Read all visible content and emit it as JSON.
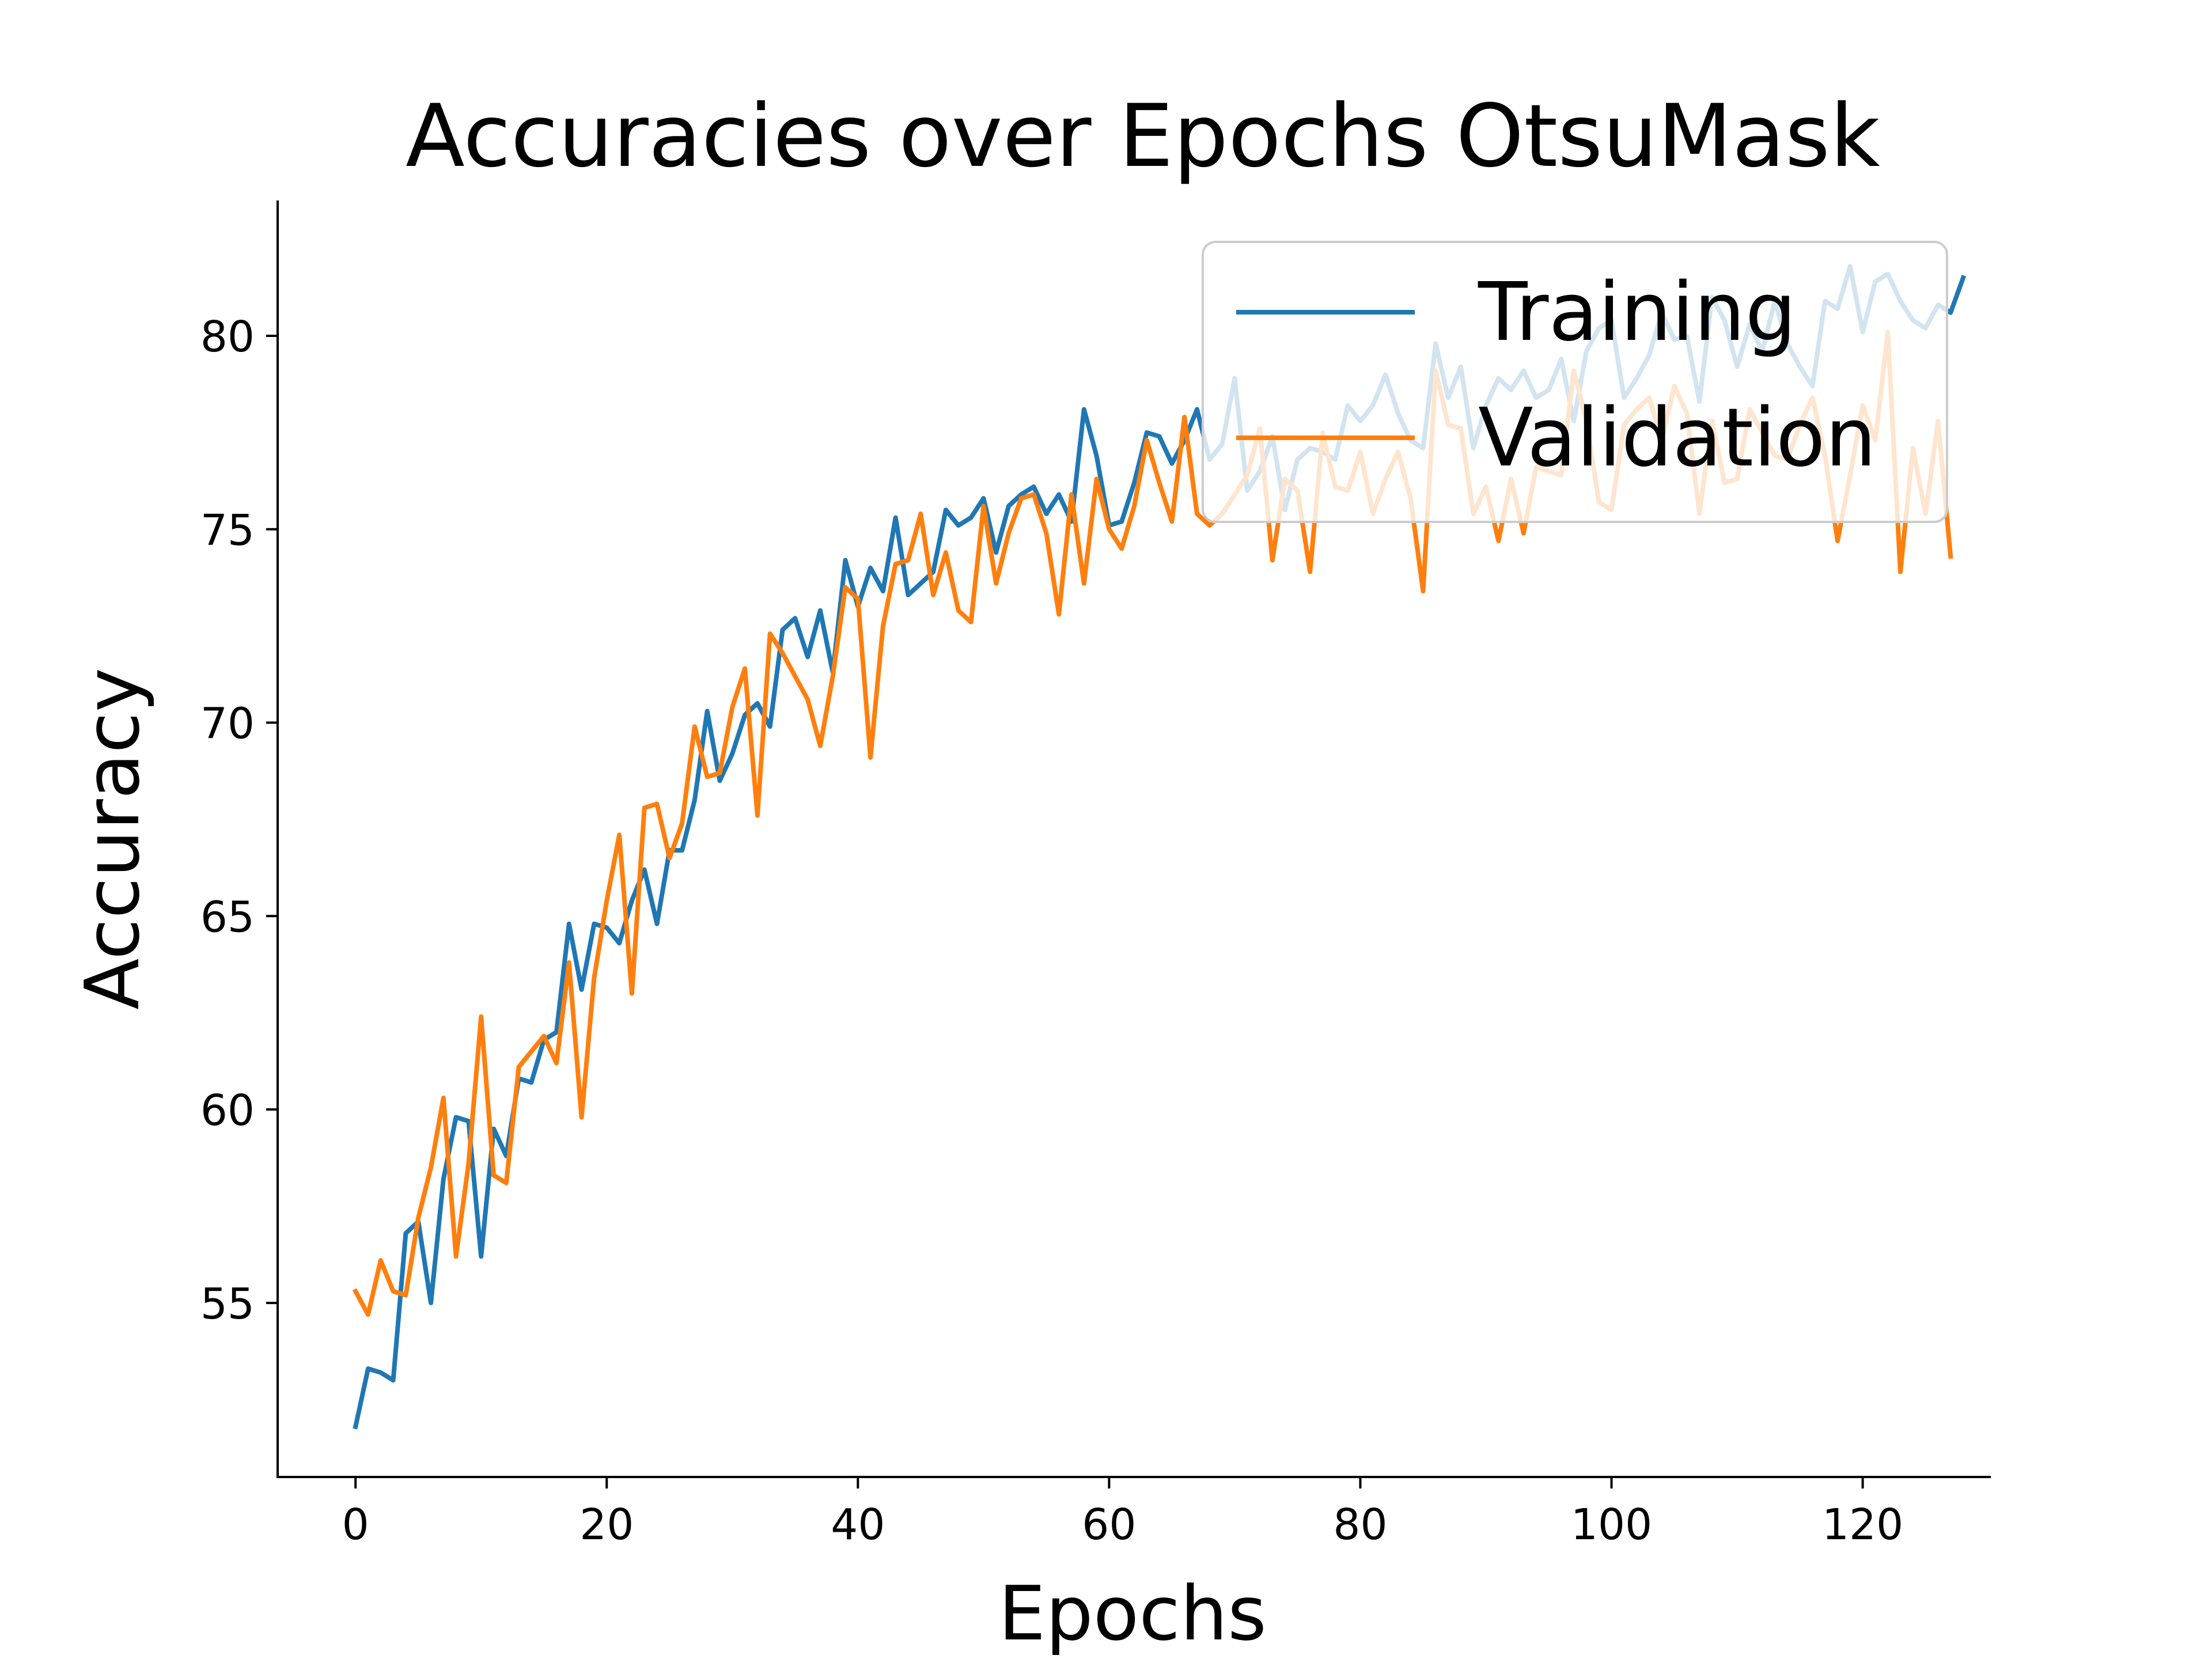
{
  "chart_data": {
    "type": "line",
    "title": "Accuracies over Epochs OtsuMask",
    "xlabel": "Epochs",
    "ylabel": "Accuracy",
    "xlim": [
      -6.2,
      130.2
    ],
    "ylim": [
      50.5,
      83.5
    ],
    "xticks": [
      0,
      20,
      40,
      60,
      80,
      100,
      120
    ],
    "yticks": [
      55,
      60,
      65,
      70,
      75,
      80
    ],
    "grid": false,
    "legend_position": "top-right",
    "series": [
      {
        "name": "Training",
        "color": "#1f77b4",
        "values": [
          51.8,
          53.3,
          53.2,
          53.0,
          56.8,
          57.1,
          55.0,
          58.2,
          59.8,
          59.7,
          56.2,
          59.5,
          58.8,
          60.8,
          60.7,
          61.8,
          62.0,
          64.8,
          63.1,
          64.8,
          64.7,
          64.3,
          65.4,
          66.2,
          64.8,
          66.7,
          66.7,
          68.0,
          70.3,
          68.5,
          69.2,
          70.2,
          70.5,
          69.9,
          72.4,
          72.7,
          71.7,
          72.9,
          71.3,
          74.2,
          73.0,
          74.0,
          73.4,
          75.3,
          73.3,
          73.6,
          73.9,
          75.5,
          75.1,
          75.3,
          75.8,
          74.4,
          75.6,
          75.9,
          76.1,
          75.4,
          75.9,
          75.2,
          78.1,
          76.9,
          75.1,
          75.2,
          76.2,
          77.5,
          77.4,
          76.7,
          77.3,
          78.1,
          76.8,
          77.2,
          78.9,
          76.0,
          76.5,
          77.4,
          75.5,
          76.8,
          77.1,
          77.0,
          76.8,
          78.2,
          77.8,
          78.2,
          79.0,
          78.0,
          77.3,
          77.1,
          79.8,
          78.4,
          79.2,
          77.1,
          78.2,
          78.9,
          78.6,
          79.1,
          78.4,
          78.6,
          79.4,
          77.8,
          79.6,
          80.2,
          80.4,
          78.4,
          78.9,
          79.5,
          80.6,
          79.9,
          80.0,
          78.3,
          81.0,
          80.4,
          79.2,
          80.3,
          79.6,
          80.9,
          79.8,
          79.2,
          78.7,
          80.9,
          80.7,
          81.8,
          80.1,
          81.4,
          81.6,
          80.9,
          80.4,
          80.2,
          80.8,
          80.6,
          81.5
        ]
      },
      {
        "name": "Validation",
        "color": "#ff7f0e",
        "values": [
          55.3,
          54.7,
          56.1,
          55.3,
          55.2,
          57.2,
          58.5,
          60.3,
          56.2,
          58.6,
          62.4,
          58.3,
          58.1,
          61.1,
          61.5,
          61.9,
          61.2,
          63.8,
          59.8,
          63.4,
          65.4,
          67.1,
          63.0,
          67.8,
          67.9,
          66.5,
          67.4,
          69.9,
          68.6,
          68.7,
          70.4,
          71.4,
          67.6,
          72.3,
          71.8,
          71.2,
          70.6,
          69.4,
          71.2,
          73.5,
          73.2,
          69.1,
          72.5,
          74.1,
          74.2,
          75.4,
          73.3,
          74.4,
          72.9,
          72.6,
          75.6,
          73.6,
          74.9,
          75.8,
          75.9,
          74.9,
          72.8,
          75.9,
          73.6,
          76.3,
          75.0,
          74.5,
          75.6,
          77.3,
          76.2,
          75.2,
          77.9,
          75.4,
          75.1,
          75.4,
          75.9,
          76.4,
          77.6,
          74.2,
          76.3,
          76.0,
          73.9,
          77.5,
          76.1,
          76.0,
          77.0,
          75.4,
          76.3,
          77.0,
          75.8,
          73.4,
          79.1,
          77.7,
          77.6,
          75.4,
          76.1,
          74.7,
          76.3,
          74.9,
          76.6,
          76.5,
          76.4,
          79.1,
          77.8,
          75.7,
          75.5,
          77.7,
          78.1,
          78.4,
          77.3,
          78.7,
          78.0,
          75.4,
          77.8,
          76.2,
          76.3,
          78.1,
          77.5,
          76.9,
          76.8,
          77.7,
          78.4,
          76.9,
          74.7,
          76.4,
          78.2,
          77.3,
          80.1,
          73.9,
          77.1,
          75.4,
          77.8,
          74.3
        ]
      }
    ]
  }
}
